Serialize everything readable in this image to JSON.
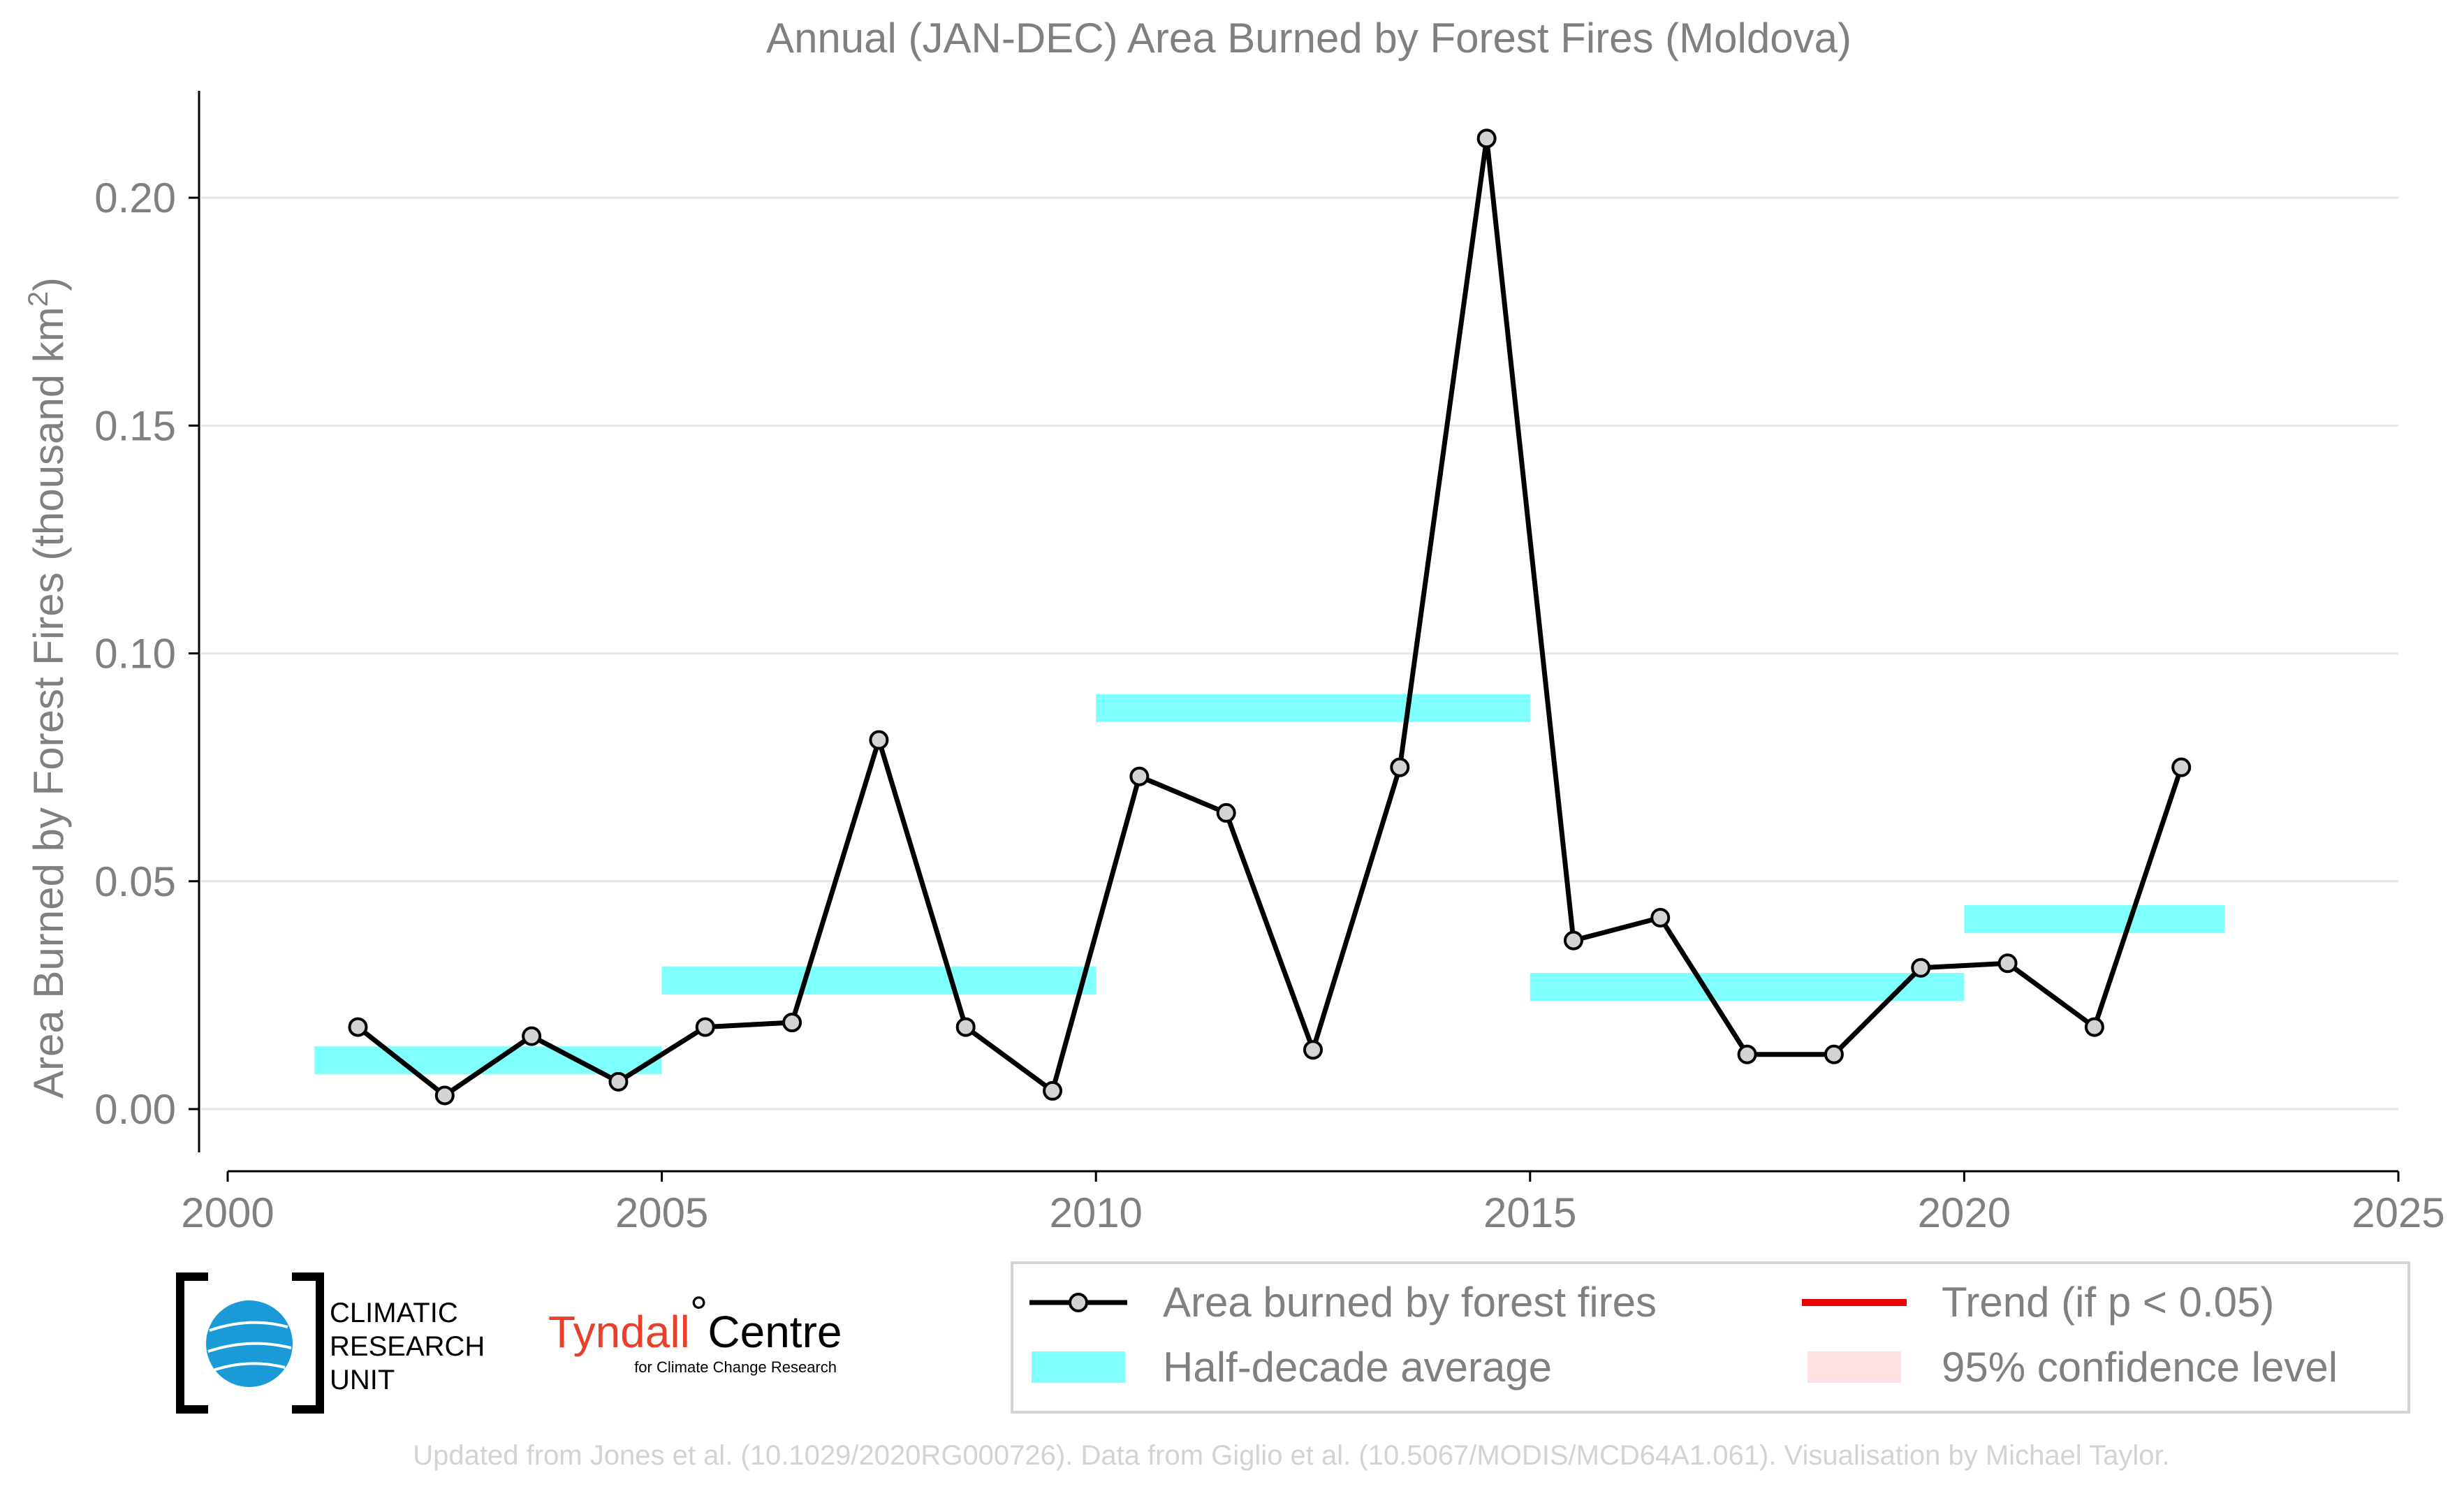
{
  "chart_data": {
    "type": "line",
    "title": "Annual (JAN-DEC) Area Burned by Forest Fires (Moldova)",
    "ylabel": "Area Burned by Forest Fires (thousand km",
    "ylabel_sup": "2",
    "ylabel_close": ")",
    "xlim": [
      2000,
      2025
    ],
    "ylim": [
      -0.0095,
      0.225
    ],
    "x_ticks": [
      2000,
      2005,
      2010,
      2015,
      2020,
      2025
    ],
    "x_tick_labels": [
      "2000",
      "2005",
      "2010",
      "2015",
      "2020",
      "2025"
    ],
    "y_ticks": [
      0,
      0.05,
      0.1,
      0.15,
      0.2
    ],
    "y_tick_labels": [
      "0.00",
      "0.05",
      "0.10",
      "0.15",
      "0.20"
    ],
    "grid": "horizontal",
    "series": [
      {
        "name": "Area burned by forest fires",
        "color": "#000000",
        "marker_fill": "#d3d3d3",
        "x": [
          2001.5,
          2002.5,
          2003.5,
          2004.5,
          2005.5,
          2006.5,
          2007.5,
          2008.5,
          2009.5,
          2010.5,
          2011.5,
          2012.5,
          2013.5,
          2014.5,
          2015.5,
          2016.5,
          2017.5,
          2018.5,
          2019.5,
          2020.5,
          2021.5,
          2022.5
        ],
        "y": [
          0.018,
          0.003,
          0.016,
          0.006,
          0.018,
          0.019,
          0.081,
          0.018,
          0.004,
          0.073,
          0.065,
          0.013,
          0.075,
          0.213,
          0.037,
          0.042,
          0.012,
          0.012,
          0.031,
          0.032,
          0.018,
          0.075
        ]
      },
      {
        "name": "Half-decade average",
        "color": "#80ffff",
        "segments": [
          {
            "x_start": 2001,
            "x_end": 2005,
            "y": 0.0107
          },
          {
            "x_start": 2005,
            "x_end": 2010,
            "y": 0.0282
          },
          {
            "x_start": 2010,
            "x_end": 2015,
            "y": 0.088
          },
          {
            "x_start": 2015,
            "x_end": 2020,
            "y": 0.0268
          },
          {
            "x_start": 2020,
            "x_end": 2023,
            "y": 0.0417
          }
        ]
      }
    ],
    "legend": {
      "placement": "bottom",
      "entries": [
        {
          "label": "Area burned by forest fires",
          "kind": "line-marker",
          "color": "#000000"
        },
        {
          "label": "Trend (if p < 0.05)",
          "kind": "line",
          "color": "#ee0000"
        },
        {
          "label": "Half-decade average",
          "kind": "band",
          "color": "#80ffff"
        },
        {
          "label": "95% confidence level",
          "kind": "band",
          "color": "#ffe0e3"
        }
      ]
    }
  },
  "logos": {
    "cru": [
      "CLIMATIC",
      "RESEARCH",
      "UNIT"
    ],
    "tyndall_name": "Tyndall",
    "tyndall_degree": "°",
    "tyndall_centre": "Centre",
    "tyndall_sub": "for Climate Change Research"
  },
  "footer": "Updated from Jones et al. (10.1029/2020RG000726). Data from Giglio et al. (10.5067/MODIS/MCD64A1.061). Visualisation by Michael Taylor."
}
